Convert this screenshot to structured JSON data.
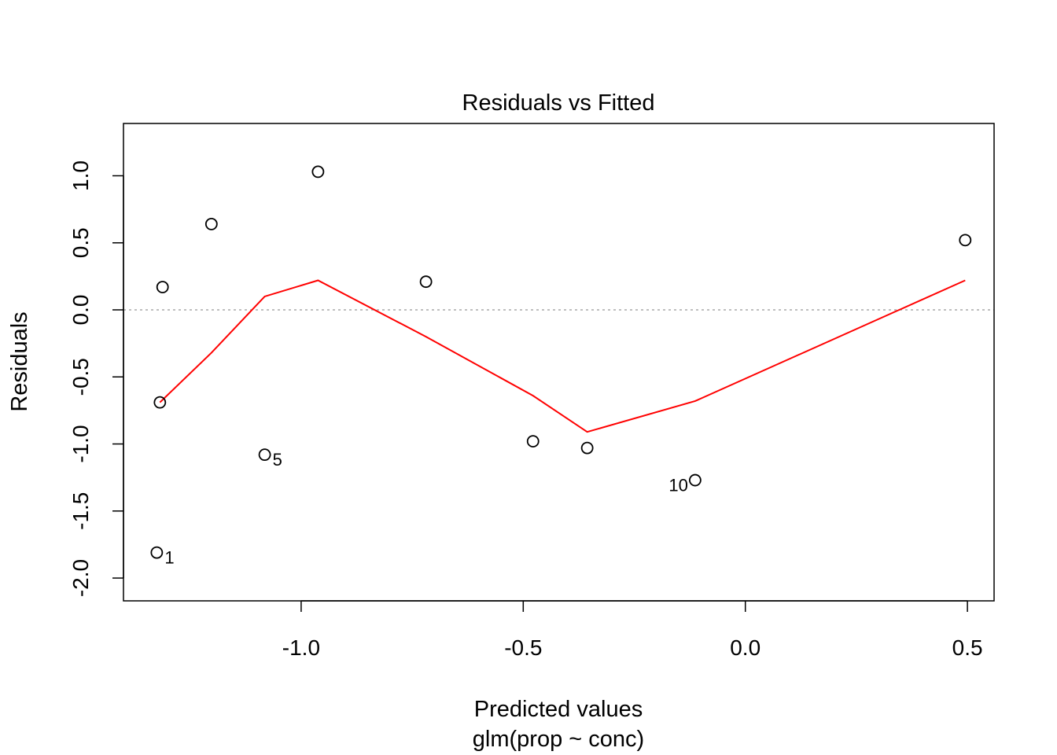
{
  "chart_data": {
    "type": "scatter",
    "title": "Residuals vs Fitted",
    "xlabel": "Predicted values",
    "subtitle": "glm(prop ~ conc)",
    "ylabel": "Residuals",
    "xlim": [
      -1.4,
      0.56
    ],
    "ylim": [
      -2.17,
      1.39
    ],
    "x_ticks": [
      -1.0,
      -0.5,
      0.0,
      0.5
    ],
    "x_tick_labels": [
      "-1.0",
      "-0.5",
      "0.0",
      "0.5"
    ],
    "y_ticks": [
      -2.0,
      -1.5,
      -1.0,
      -0.5,
      0.0,
      0.5,
      1.0
    ],
    "y_tick_labels": [
      "-2.0",
      "-1.5",
      "-1.0",
      "-0.5",
      "0.0",
      "0.5",
      "1.0"
    ],
    "grid": false,
    "reference_line": {
      "y": 0,
      "style": "dotted",
      "color": "#a9a9a9"
    },
    "points": [
      {
        "x": -1.325,
        "y": -1.81,
        "label": "1"
      },
      {
        "x": -1.318,
        "y": -0.69,
        "label": ""
      },
      {
        "x": -1.312,
        "y": 0.17,
        "label": ""
      },
      {
        "x": -1.202,
        "y": 0.64,
        "label": ""
      },
      {
        "x": -1.082,
        "y": -1.08,
        "label": "5"
      },
      {
        "x": -0.962,
        "y": 1.03,
        "label": ""
      },
      {
        "x": -0.719,
        "y": 0.21,
        "label": ""
      },
      {
        "x": -0.478,
        "y": -0.98,
        "label": ""
      },
      {
        "x": -0.356,
        "y": -1.03,
        "label": ""
      },
      {
        "x": -0.113,
        "y": -1.27,
        "label": "10"
      },
      {
        "x": 0.495,
        "y": 0.52,
        "label": ""
      }
    ],
    "smooth_line": {
      "color": "#ff0000",
      "x": [
        -1.318,
        -1.202,
        -1.082,
        -0.962,
        -0.719,
        -0.478,
        -0.356,
        -0.113,
        0.495
      ],
      "y": [
        -0.69,
        -0.32,
        0.1,
        0.22,
        -0.2,
        -0.64,
        -0.91,
        -0.68,
        0.22
      ]
    }
  }
}
